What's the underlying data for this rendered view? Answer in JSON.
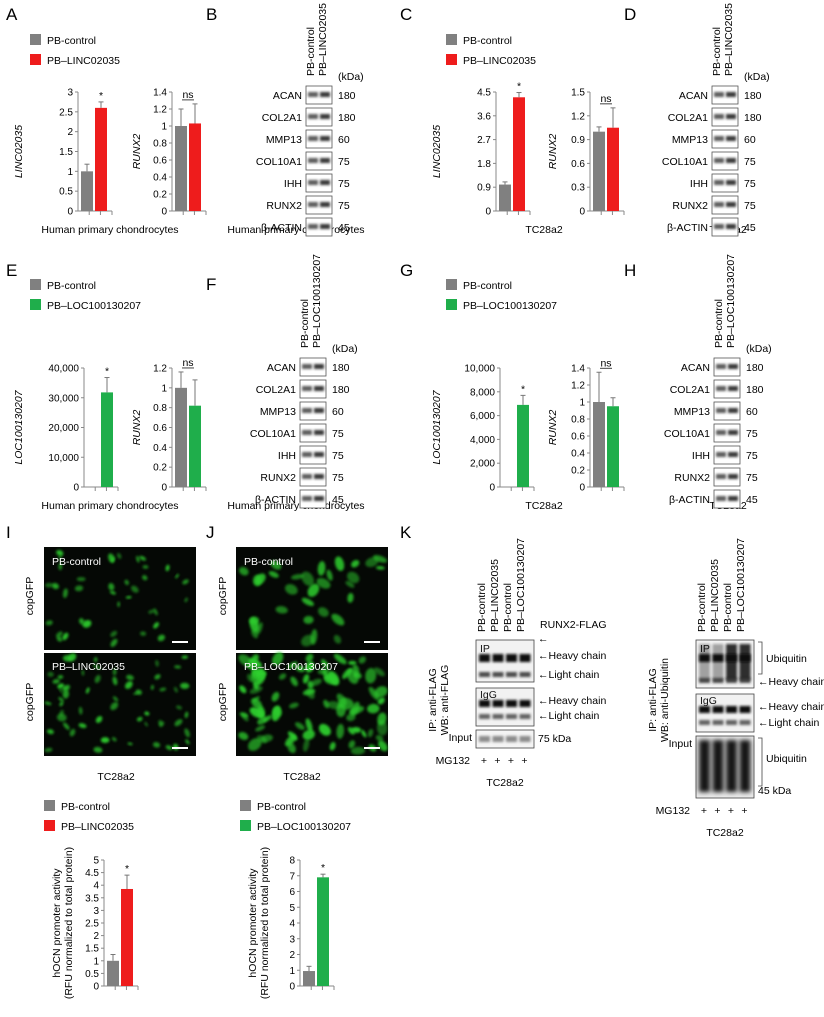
{
  "colors": {
    "control": "#808080",
    "red": "#ee1c1c",
    "green": "#1fae4b",
    "gfp": "#2ed02e"
  },
  "panels": {
    "A": "A",
    "B": "B",
    "C": "C",
    "D": "D",
    "E": "E",
    "F": "F",
    "G": "G",
    "H": "H",
    "I": "I",
    "J": "J",
    "K": "K"
  },
  "legend": {
    "control": "PB-control",
    "linc": "PB–LINC02035",
    "loc": "PB–LOC100130207"
  },
  "captions": {
    "hpc": "Human primary chondrocytes",
    "tc": "TC28a2"
  },
  "sig": {
    "star": "*",
    "ns": "ns"
  },
  "blot": {
    "kda": "(kDa)",
    "lanes_linc": [
      "PB-control",
      "PB–LINC02035"
    ],
    "lanes_loc": [
      "PB-control",
      "PB–LOC100130207"
    ],
    "proteins": [
      "ACAN",
      "COL2A1",
      "MMP13",
      "COL10A1",
      "IHH",
      "RUNX2",
      "β-ACTIN"
    ],
    "sizes": [
      "180",
      "180",
      "60",
      "75",
      "75",
      "75",
      "45"
    ]
  },
  "images": {
    "copgfp": "copGFP",
    "control": "PB-control",
    "linc": "PB–LINC02035",
    "loc": "PB–LOC100130207"
  },
  "ip": {
    "lanes": [
      "PB-control",
      "PB–LINC02035",
      "PB-control",
      "PB–LOC100130207"
    ],
    "left_axis": "IP: anti-FLAG\nWB: anti-FLAG",
    "right_axis": "IP: anti-FLAG\nWB: anti-Ubiquitin",
    "ip": "IP",
    "igg": "IgG",
    "input": "Input",
    "runx2flag": "RUNX2-FLAG",
    "heavy": "Heavy chain",
    "light": "Light chain",
    "kda75": "75 kDa",
    "kda45": "45 kDa",
    "ubiquitin": "Ubiquitin",
    "mg132": "MG132",
    "plus": "+"
  },
  "chart_data": [
    {
      "panel": "A-left",
      "type": "bar",
      "ylabel": "LINC02035",
      "categories": [
        "PB-control",
        "PB–LINC02035"
      ],
      "values": [
        1.0,
        2.6
      ],
      "errors": [
        0.18,
        0.15
      ],
      "ylim": [
        0,
        3
      ],
      "ticks": [
        "0",
        "0.5",
        "1",
        "1.5",
        "2",
        "2.5",
        "3"
      ],
      "annot": "*"
    },
    {
      "panel": "A-right",
      "type": "bar",
      "ylabel": "RUNX2",
      "categories": [
        "PB-control",
        "PB–LINC02035"
      ],
      "values": [
        1.0,
        1.03
      ],
      "errors": [
        0.2,
        0.23
      ],
      "ylim": [
        0,
        1.4
      ],
      "ticks": [
        "0",
        "0.2",
        "0.4",
        "0.6",
        "0.8",
        "1",
        "1.2",
        "1.4"
      ],
      "annot": "ns"
    },
    {
      "panel": "C-left",
      "type": "bar",
      "ylabel": "LINC02035",
      "categories": [
        "PB-control",
        "PB–LINC02035"
      ],
      "values": [
        1.0,
        4.3
      ],
      "errors": [
        0.1,
        0.18
      ],
      "ylim": [
        0,
        4.5
      ],
      "ticks": [
        "0",
        "0.9",
        "1.8",
        "2.7",
        "3.6",
        "4.5"
      ],
      "annot": "*"
    },
    {
      "panel": "C-right",
      "type": "bar",
      "ylabel": "RUNX2",
      "categories": [
        "PB-control",
        "PB–LINC02035"
      ],
      "values": [
        1.0,
        1.05
      ],
      "errors": [
        0.06,
        0.25
      ],
      "ylim": [
        0,
        1.5
      ],
      "ticks": [
        "0",
        "0.3",
        "0.6",
        "0.9",
        "1.2",
        "1.5"
      ],
      "annot": "ns"
    },
    {
      "panel": "E-left",
      "type": "bar",
      "ylabel": "LOC100130207",
      "categories": [
        "PB-control",
        "PB–LOC100130207"
      ],
      "values": [
        0,
        31800
      ],
      "errors": [
        0,
        5000
      ],
      "ylim": [
        0,
        40000
      ],
      "ticks": [
        "0",
        "10,000",
        "20,000",
        "30,000",
        "40,000"
      ],
      "annot": "*"
    },
    {
      "panel": "E-right",
      "type": "bar",
      "ylabel": "RUNX2",
      "categories": [
        "PB-control",
        "PB–LOC100130207"
      ],
      "values": [
        1.0,
        0.82
      ],
      "errors": [
        0.16,
        0.26
      ],
      "ylim": [
        0,
        1.2
      ],
      "ticks": [
        "0",
        "0.2",
        "0.4",
        "0.6",
        "0.8",
        "1",
        "1.2"
      ],
      "annot": "ns"
    },
    {
      "panel": "G-left",
      "type": "bar",
      "ylabel": "LOC100130207",
      "categories": [
        "PB-control",
        "PB–LOC100130207"
      ],
      "values": [
        0,
        6900
      ],
      "errors": [
        0,
        800
      ],
      "ylim": [
        0,
        10000
      ],
      "ticks": [
        "0",
        "2,000",
        "4,000",
        "6,000",
        "8,000",
        "10,000"
      ],
      "annot": "*"
    },
    {
      "panel": "G-right",
      "type": "bar",
      "ylabel": "RUNX2",
      "categories": [
        "PB-control",
        "PB–LOC100130207"
      ],
      "values": [
        1.0,
        0.95
      ],
      "errors": [
        0.35,
        0.1
      ],
      "ylim": [
        0,
        1.4
      ],
      "ticks": [
        "0",
        "0.2",
        "0.4",
        "0.6",
        "0.8",
        "1",
        "1.2",
        "1.4"
      ],
      "annot": "ns"
    },
    {
      "panel": "I",
      "type": "bar",
      "ylabel": "hOCN promoter activity\n(RFU normalized to total protein)",
      "categories": [
        "PB-control",
        "PB–LINC02035"
      ],
      "values": [
        1.0,
        3.85
      ],
      "errors": [
        0.25,
        0.55
      ],
      "ylim": [
        0,
        5
      ],
      "ticks": [
        "0",
        "0.5",
        "1",
        "1.5",
        "2",
        "2.5",
        "3",
        "3.5",
        "4",
        "4.5",
        "5"
      ],
      "annot": "*"
    },
    {
      "panel": "J",
      "type": "bar",
      "ylabel": "hOCN promoter activity\n(RFU normalized to total protein)",
      "categories": [
        "PB-control",
        "PB–LOC100130207"
      ],
      "values": [
        0.95,
        6.9
      ],
      "errors": [
        0.3,
        0.2
      ],
      "ylim": [
        0,
        8
      ],
      "ticks": [
        "0",
        "1",
        "2",
        "3",
        "4",
        "5",
        "6",
        "7",
        "8"
      ],
      "annot": "*"
    }
  ]
}
